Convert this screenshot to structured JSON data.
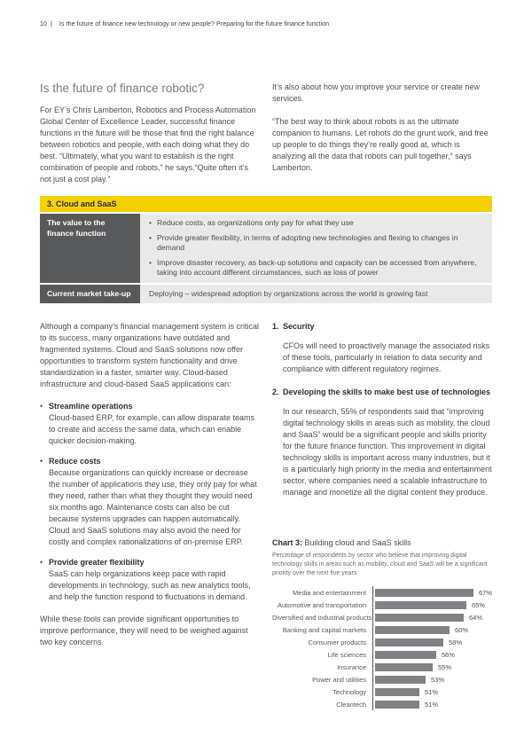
{
  "page": {
    "number": "10",
    "header": "Is the future of finance new technology or new people? Preparing for the future finance function"
  },
  "intro": {
    "title": "Is the future of finance robotic?",
    "left_paragraph": "For EY’s Chris Lamberton, Robotics and Process Automation Global Center of Excellence Leader, successful finance functions in the future will be those that find the right balance between robotics and people, with each doing what they do best. “Ultimately, what you want to establish is the right combination of people and robots,” he says.“Quite often it’s not just a cost play.”",
    "right_paragraph_1": "It’s also about how you improve your service or create new services.",
    "right_paragraph_2": "“The best way to think about robots is as the ultimate companion to humans. Let robots do the grunt work, and free up people to do things they’re really good at, which is analyzing all the data that robots can pull together,” says Lamberton."
  },
  "table": {
    "header": "3. Cloud and SaaS",
    "rows": [
      {
        "label": "The value to the finance function",
        "bullets": [
          "Reduce costs, as organizations only pay for what they use",
          "Provide greater flexibility, in terms of adopting new technologies and flexing to changes in demand",
          "Improve disaster recovery, as back-up solutions and capacity can be accessed from anywhere, taking into account different circumstances, such as loss of power"
        ]
      },
      {
        "label": "Current market take-up",
        "text": "Deploying – widespread adoption by organizations across the world is growing fast"
      }
    ]
  },
  "body": {
    "left": {
      "paragraph": "Although a company’s financial management system is critical to its success, many organizations have outdated and fragmented systems. Cloud and SaaS solutions now offer opportunities to transform system functionality and drive standardization in a faster, smarter way. Cloud-based infrastructure and cloud-based SaaS applications can:",
      "bullets": [
        {
          "title": "Streamline operations",
          "text": "Cloud-based ERP, for example, can allow disparate teams to create and access the same data, which can enable quicker decision-making."
        },
        {
          "title": "Reduce costs",
          "text": "Because organizations can quickly increase or decrease the number of applications they use, they only pay for what they need, rather than what they thought they would need six months ago. Maintenance costs can also be cut because systems upgrades can happen automatically. Cloud and SaaS solutions may also avoid the need for costly and complex rationalizations of on-premise ERP."
        },
        {
          "title": "Provide greater flexibility",
          "text": "SaaS can help organizations keep pace with rapid developments in technology, such as new analytics tools, and help the function respond to fluctuations in demand."
        }
      ],
      "closing": "While these tools can provide significant opportunities to improve performance, they will need to be weighed against two key concerns."
    },
    "right": {
      "items": [
        {
          "number": "1.",
          "title": "Security",
          "text": "CFOs will need to proactively manage the associated risks of these tools, particularly in relation to data security and compliance with different regulatory regimes."
        },
        {
          "number": "2.",
          "title": "Developing the skills to make best use of technologies",
          "text": "In our research, 55% of respondents said that “improving digital technology skills in areas such as mobility, the cloud and SaaS” would be a significant people and skills priority for the future finance function. This improvement in digital technology skills is important across many industries, but it is a particularly high priority in the media and entertainment sector, where companies need a scalable infrastructure to manage and monetize all the digital content they produce."
        }
      ]
    }
  },
  "chart_data": {
    "type": "bar",
    "orientation": "horizontal",
    "title_prefix": "Chart 3:",
    "title": "Building cloud and SaaS skills",
    "subtitle": "Percentage of respondents by sector who believe that improving digital technology skills in areas such as mobility, cloud and SaaS will be a significant priority over the next five years",
    "categories": [
      "Media and entertainment",
      "Automotive and transportation",
      "Diversified and industrial products",
      "Banking and capital markets",
      "Consumer products",
      "Life sciences",
      "Insurance",
      "Power and utilities",
      "Technology",
      "Cleantech"
    ],
    "values": [
      67,
      65,
      64,
      60,
      58,
      56,
      55,
      53,
      51,
      51
    ],
    "value_suffix": "%",
    "xlim": [
      38,
      67
    ],
    "legend": "none",
    "grid": false,
    "bar_color": "#808285"
  },
  "colors": {
    "accent_yellow": "#f3d100",
    "dark_gray": "#58595b",
    "light_gray": "#e9e9e9",
    "bar_gray": "#808285"
  }
}
